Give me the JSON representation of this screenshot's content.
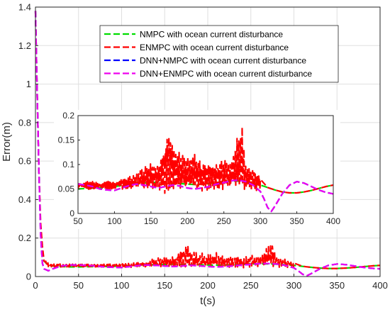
{
  "chart_data": {
    "type": "line",
    "xlabel": "t(s)",
    "ylabel": "Error(m)",
    "xlim": [
      0,
      400
    ],
    "ylim": [
      0,
      1.4
    ],
    "xticks": [
      "0",
      "50",
      "100",
      "150",
      "200",
      "250",
      "300",
      "350",
      "400"
    ],
    "yticks": [
      "0",
      "0.2",
      "0.4",
      "0.6",
      "0.8",
      "1",
      "1.2",
      "1.4"
    ],
    "grid": true,
    "legend_position": "top-right",
    "series": [
      {
        "name": "NMPC with ocean current disturbance",
        "color": "#00dd00",
        "x": [
          0,
          2,
          4,
          6,
          8,
          10,
          15,
          20,
          30,
          40,
          50,
          60,
          70,
          80,
          90,
          100,
          110,
          120,
          130,
          140,
          150,
          160,
          170,
          180,
          190,
          200,
          210,
          220,
          230,
          240,
          250,
          260,
          270,
          280,
          290,
          300,
          310,
          320,
          330,
          340,
          350,
          360,
          370,
          380,
          390,
          400
        ],
        "y": [
          1.38,
          0.95,
          0.55,
          0.25,
          0.12,
          0.08,
          0.06,
          0.055,
          0.052,
          0.05,
          0.05,
          0.051,
          0.052,
          0.052,
          0.053,
          0.055,
          0.057,
          0.058,
          0.06,
          0.062,
          0.063,
          0.064,
          0.063,
          0.062,
          0.061,
          0.06,
          0.059,
          0.06,
          0.061,
          0.063,
          0.065,
          0.066,
          0.066,
          0.064,
          0.061,
          0.058,
          0.053,
          0.048,
          0.044,
          0.042,
          0.042,
          0.044,
          0.047,
          0.051,
          0.055,
          0.058
        ]
      },
      {
        "name": "ENMPC with ocean current disturbance",
        "color": "#ff0000",
        "x": [
          0,
          2,
          4,
          6,
          8,
          10,
          15,
          20,
          30,
          40,
          50,
          60,
          70,
          80,
          90,
          100,
          110,
          120,
          130,
          140,
          150,
          160,
          170,
          175,
          180,
          190,
          200,
          210,
          220,
          230,
          240,
          250,
          260,
          270,
          275,
          280,
          290,
          300,
          310,
          320,
          330,
          340,
          350,
          360,
          370,
          380,
          390,
          400
        ],
        "y": [
          1.38,
          0.95,
          0.55,
          0.28,
          0.16,
          0.08,
          0.07,
          0.06,
          0.06,
          0.06,
          0.06,
          0.06,
          0.06,
          0.06,
          0.06,
          0.06,
          0.07,
          0.07,
          0.08,
          0.09,
          0.1,
          0.1,
          0.15,
          0.19,
          0.14,
          0.12,
          0.11,
          0.12,
          0.1,
          0.11,
          0.1,
          0.11,
          0.1,
          0.16,
          0.18,
          0.1,
          0.09,
          0.07,
          0.053,
          0.048,
          0.044,
          0.042,
          0.042,
          0.044,
          0.047,
          0.051,
          0.055,
          0.058
        ]
      },
      {
        "name": "DNN+NMPC with ocean current disturbance",
        "color": "#0000ff",
        "x": [
          0,
          2,
          4,
          6,
          8,
          10,
          15,
          20,
          30,
          40,
          50,
          60,
          70,
          80,
          90,
          100,
          110,
          120,
          130,
          140,
          150,
          160,
          170,
          180,
          190,
          200,
          210,
          220,
          230,
          240,
          250,
          260,
          270,
          280,
          290,
          300,
          305,
          310,
          315,
          320,
          330,
          340,
          350,
          360,
          370,
          380,
          390,
          400
        ],
        "y": [
          1.38,
          0.95,
          0.55,
          0.22,
          0.07,
          0.04,
          0.03,
          0.04,
          0.055,
          0.06,
          0.06,
          0.058,
          0.055,
          0.05,
          0.048,
          0.047,
          0.052,
          0.057,
          0.06,
          0.058,
          0.055,
          0.052,
          0.055,
          0.058,
          0.056,
          0.052,
          0.05,
          0.052,
          0.055,
          0.06,
          0.063,
          0.067,
          0.068,
          0.065,
          0.058,
          0.045,
          0.03,
          0.012,
          0.004,
          0.015,
          0.04,
          0.058,
          0.065,
          0.062,
          0.055,
          0.048,
          0.043,
          0.04
        ]
      },
      {
        "name": "DNN+ENMPC with ocean current disturbance",
        "color": "#ee00ee",
        "x": [
          0,
          2,
          4,
          6,
          8,
          10,
          15,
          20,
          30,
          40,
          50,
          60,
          70,
          80,
          90,
          100,
          110,
          120,
          130,
          140,
          150,
          160,
          170,
          180,
          190,
          200,
          210,
          220,
          230,
          240,
          250,
          260,
          270,
          280,
          290,
          300,
          305,
          310,
          315,
          320,
          330,
          340,
          350,
          360,
          370,
          380,
          390,
          400
        ],
        "y": [
          1.38,
          0.95,
          0.55,
          0.22,
          0.07,
          0.04,
          0.03,
          0.04,
          0.055,
          0.06,
          0.06,
          0.058,
          0.055,
          0.05,
          0.048,
          0.047,
          0.052,
          0.057,
          0.06,
          0.058,
          0.055,
          0.052,
          0.055,
          0.058,
          0.056,
          0.052,
          0.05,
          0.052,
          0.055,
          0.06,
          0.063,
          0.067,
          0.068,
          0.065,
          0.058,
          0.045,
          0.03,
          0.012,
          0.004,
          0.015,
          0.04,
          0.058,
          0.065,
          0.062,
          0.055,
          0.048,
          0.043,
          0.04
        ]
      }
    ],
    "inset": {
      "xlim": [
        50,
        400
      ],
      "ylim": [
        0,
        0.2
      ],
      "xticks": [
        "50",
        "100",
        "150",
        "200",
        "250",
        "300",
        "350",
        "400"
      ],
      "yticks": [
        "0",
        "0.05",
        "0.1",
        "0.15",
        "0.2"
      ],
      "grid": false
    }
  }
}
